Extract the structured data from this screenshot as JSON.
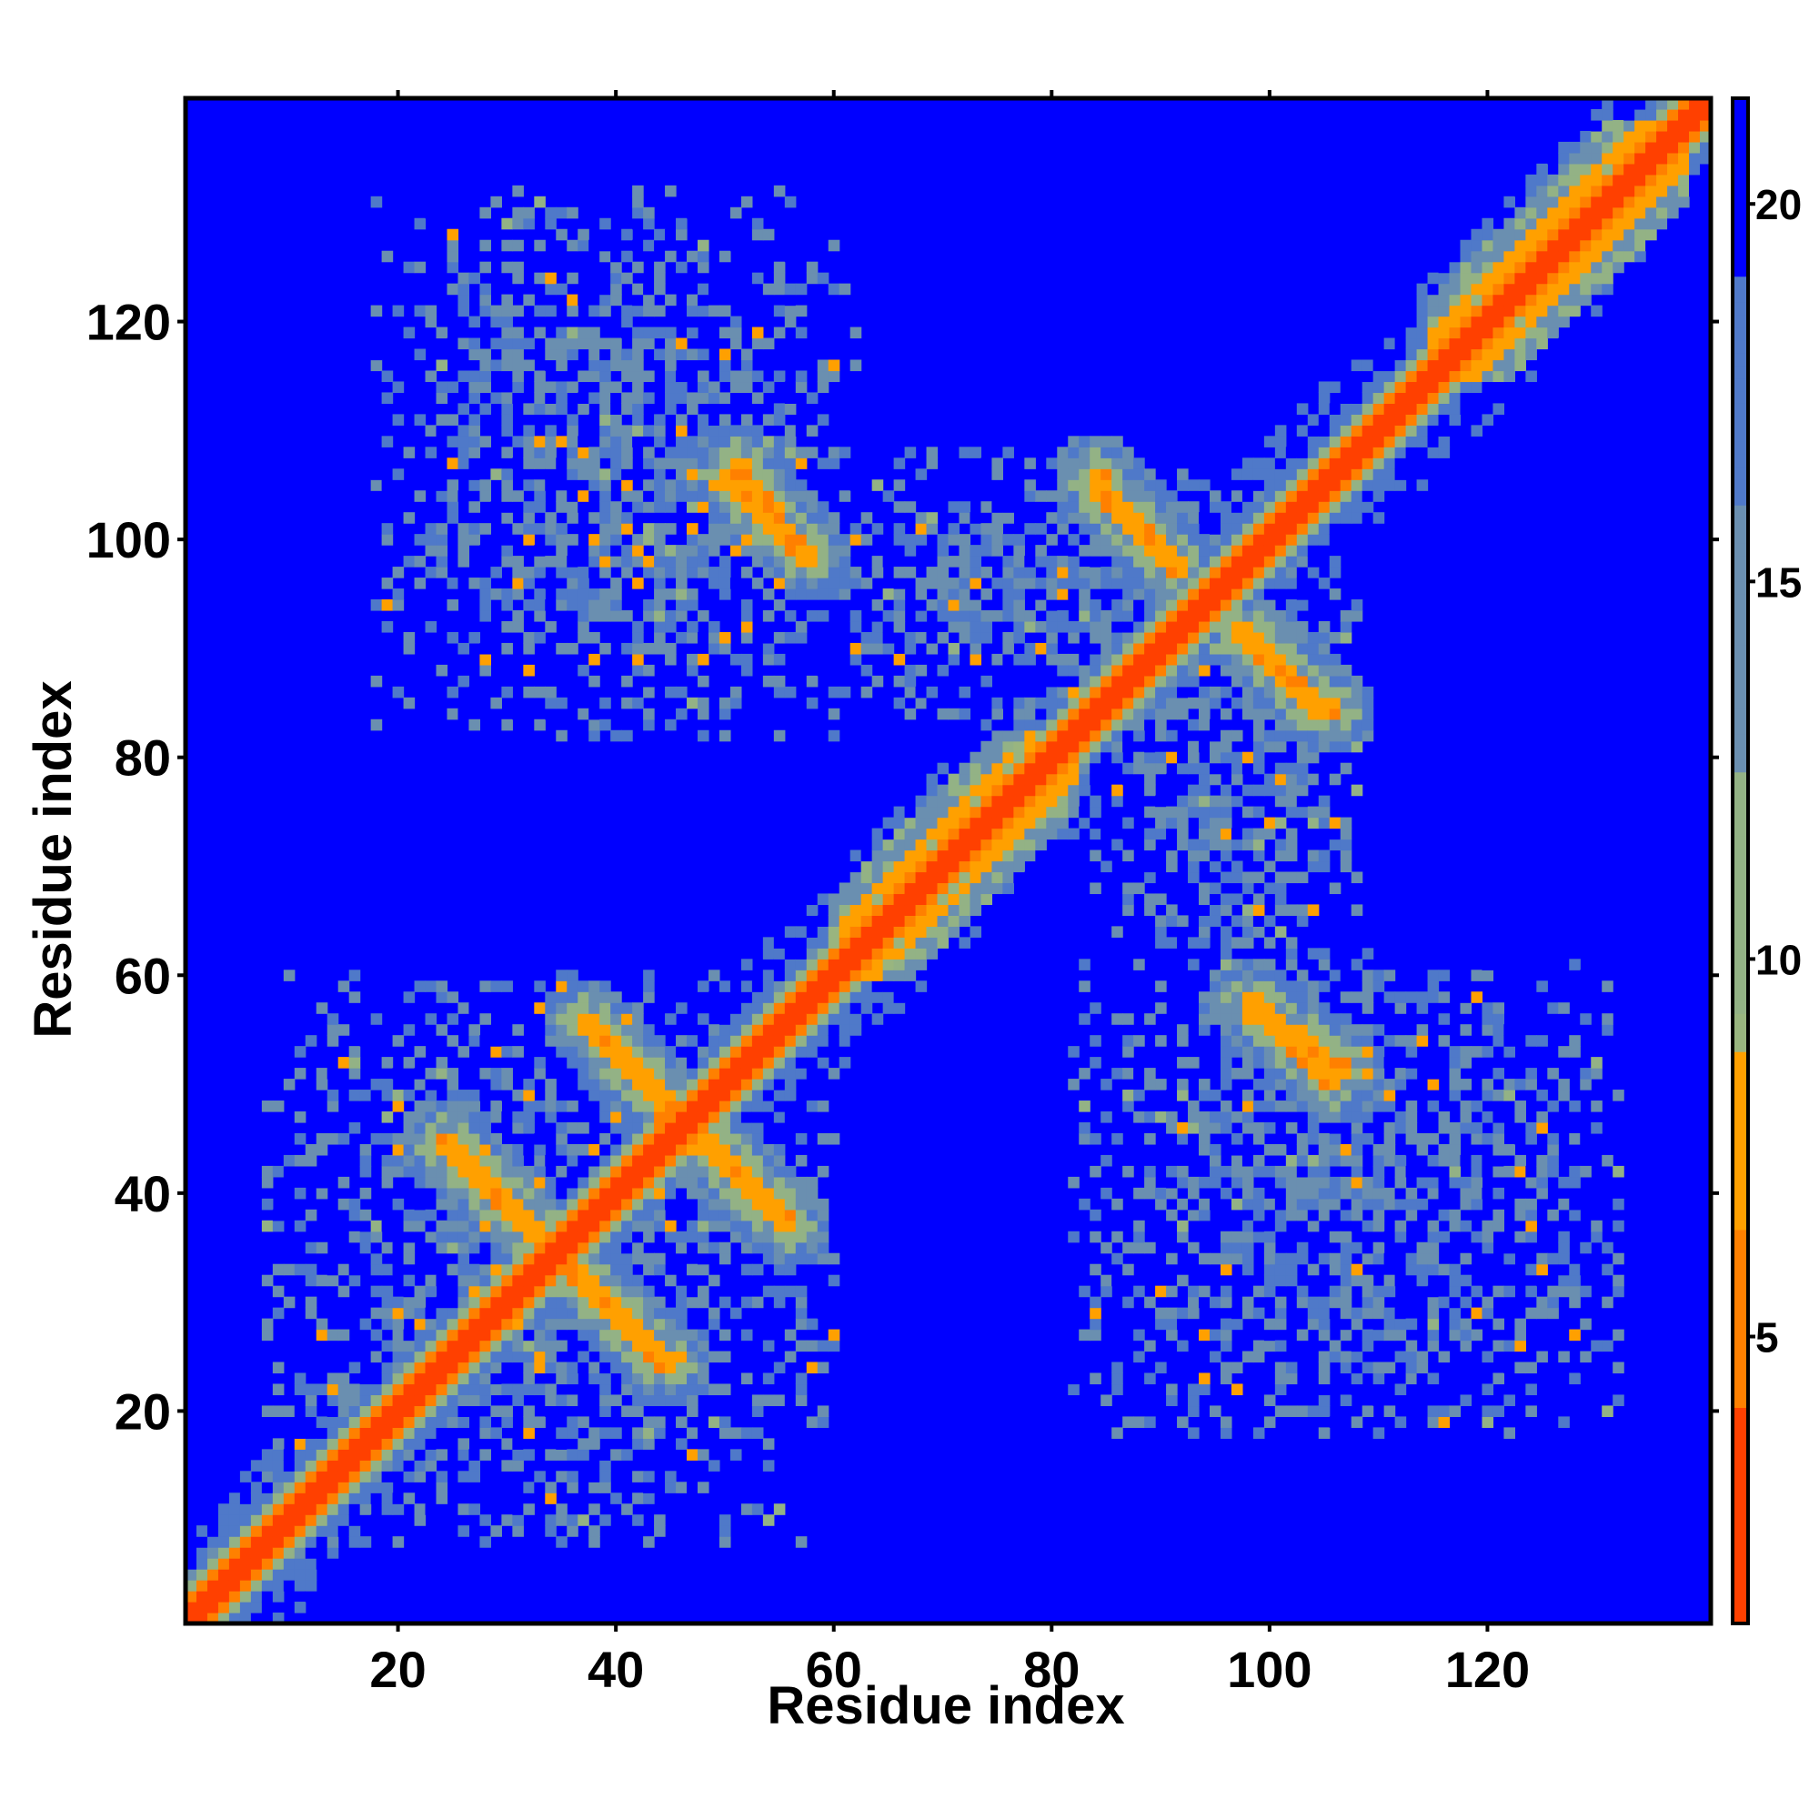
{
  "chart_data": {
    "type": "heatmap",
    "title": "",
    "xlabel": "Residue index",
    "ylabel": "Residue index",
    "xlim": [
      1,
      140
    ],
    "ylim": [
      1,
      140
    ],
    "x_ticks": [
      20,
      40,
      60,
      80,
      100,
      120
    ],
    "y_ticks": [
      20,
      40,
      60,
      80,
      100,
      120
    ],
    "colorbar": {
      "range": [
        1.2,
        21.4
      ],
      "ticks": [
        5,
        10,
        15,
        20
      ],
      "stops": [
        {
          "value": 1.2,
          "color": "#ff0000"
        },
        {
          "value": 4.0,
          "color": "#ff4000"
        },
        {
          "value": 6.5,
          "color": "#ff8000"
        },
        {
          "value": 8.8,
          "color": "#ffa000"
        },
        {
          "value": 9.2,
          "color": "#99b57f"
        },
        {
          "value": 12.5,
          "color": "#93b285"
        },
        {
          "value": 16.0,
          "color": "#6a8fb0"
        },
        {
          "value": 19.0,
          "color": "#4f79c9"
        },
        {
          "value": 21.4,
          "color": "#0000ff"
        }
      ]
    },
    "background_value": 21.4,
    "features": [
      {
        "kind": "diagonal",
        "from": 1,
        "to": 140,
        "description": "self-contact diagonal"
      },
      {
        "kind": "parallel",
        "x": [
          60,
          82
        ],
        "y": [
          60,
          82
        ],
        "description": "helix band"
      },
      {
        "kind": "parallel",
        "x": [
          115,
          138
        ],
        "y": [
          115,
          138
        ],
        "description": "helix band"
      },
      {
        "kind": "antiparallel",
        "x": [
          24,
          33
        ],
        "y": [
          45,
          36
        ]
      },
      {
        "kind": "antiparallel",
        "x": [
          37,
          45
        ],
        "y": [
          56,
          48
        ]
      },
      {
        "kind": "antiparallel",
        "x": [
          37,
          45
        ],
        "y": [
          32,
          24
        ]
      },
      {
        "kind": "antiparallel",
        "x": [
          47,
          56
        ],
        "y": [
          45,
          37
        ]
      },
      {
        "kind": "antiparallel",
        "x": [
          50,
          58
        ],
        "y": [
          106,
          98
        ]
      },
      {
        "kind": "antiparallel",
        "x": [
          84,
          92
        ],
        "y": [
          105,
          97
        ]
      },
      {
        "kind": "antiparallel",
        "x": [
          97,
          106
        ],
        "y": [
          92,
          84
        ]
      },
      {
        "kind": "antiparallel",
        "x": [
          98,
          107
        ],
        "y": [
          58,
          51
        ]
      },
      {
        "kind": "cluster",
        "x": [
          18,
          62
        ],
        "y": [
          86,
          112
        ],
        "description": "contact cloud"
      },
      {
        "kind": "cluster",
        "x": [
          8,
          60
        ],
        "y": [
          8,
          60
        ],
        "description": "contact cloud"
      },
      {
        "kind": "cluster",
        "x": [
          82,
          132
        ],
        "y": [
          18,
          62
        ],
        "description": "contact cloud"
      },
      {
        "kind": "cluster",
        "x": [
          60,
          100
        ],
        "y": [
          84,
          108
        ],
        "description": "contact cloud"
      },
      {
        "kind": "cluster",
        "x": [
          84,
          106
        ],
        "y": [
          60,
          84
        ],
        "description": "contact cloud"
      }
    ]
  }
}
